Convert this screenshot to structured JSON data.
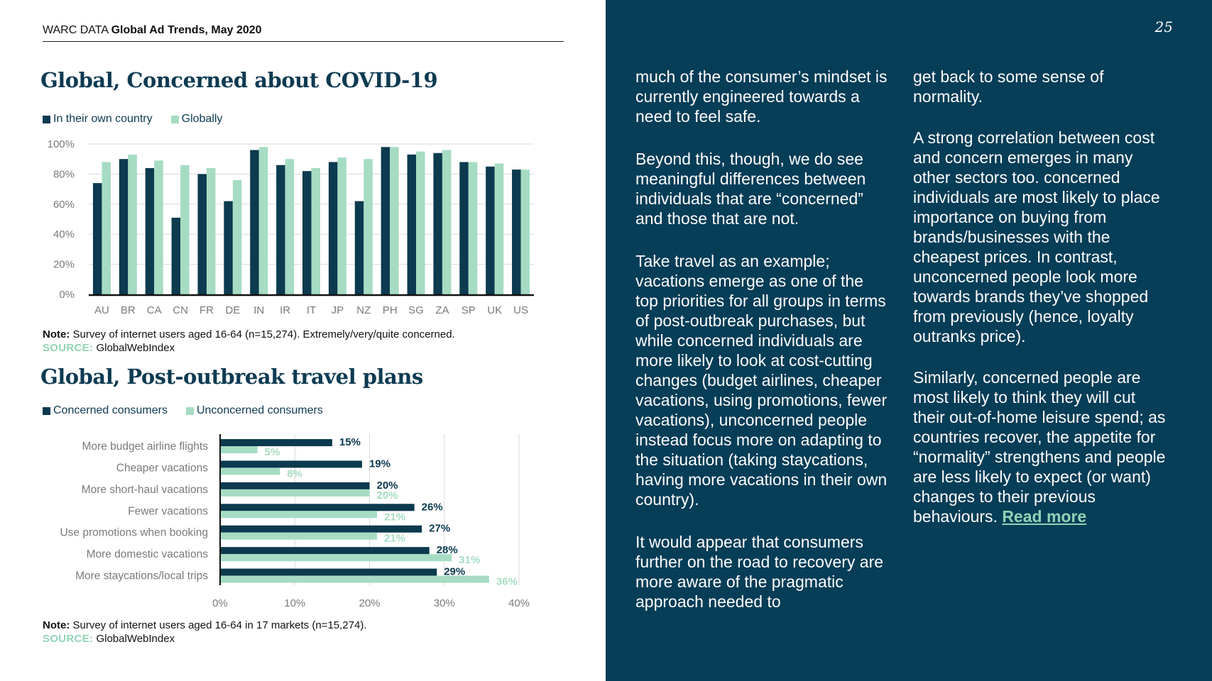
{
  "header": {
    "prefix": "WARC DATA",
    "title": "Global Ad Trends, May 2020"
  },
  "page_number": "25",
  "colors": {
    "dark": "#0c3a4f",
    "light": "#a6dcc3",
    "navy_bg": "#063d57",
    "accent": "#8fd4b6"
  },
  "chart1": {
    "title": "Global, Concerned about COVID-19",
    "legend": [
      "In their own country",
      "Globally"
    ],
    "note_label": "Note:",
    "note": "Survey of internet users aged 16-64 (n=15,274). Extremely/very/quite concerned.",
    "source_label": "SOURCE:",
    "source": "GlobalWebIndex"
  },
  "chart2": {
    "title": "Global, Post-outbreak travel plans",
    "legend": [
      "Concerned consumers",
      "Unconcerned consumers"
    ],
    "note_label": "Note:",
    "note": "Survey of internet users aged 16-64 in 17 markets (n=15,274).",
    "source_label": "SOURCE:",
    "source": "GlobalWebIndex"
  },
  "chart_data": [
    {
      "type": "bar",
      "title": "Global, Concerned about COVID-19",
      "categories": [
        "AU",
        "BR",
        "CA",
        "CN",
        "FR",
        "DE",
        "IN",
        "IR",
        "IT",
        "JP",
        "NZ",
        "PH",
        "SG",
        "ZA",
        "SP",
        "UK",
        "US"
      ],
      "series": [
        {
          "name": "In their own country",
          "values": [
            74,
            90,
            84,
            51,
            80,
            62,
            96,
            86,
            82,
            88,
            62,
            98,
            93,
            94,
            88,
            85,
            83
          ]
        },
        {
          "name": "Globally",
          "values": [
            88,
            93,
            89,
            86,
            84,
            76,
            98,
            90,
            84,
            91,
            90,
            98,
            95,
            96,
            88,
            87,
            83
          ]
        }
      ],
      "ylim": [
        0,
        100
      ],
      "yticks": [
        "0%",
        "20%",
        "40%",
        "60%",
        "80%",
        "100%"
      ],
      "xlabel": "",
      "ylabel": "",
      "grid": true,
      "legend_position": "top-left"
    },
    {
      "type": "bar",
      "orientation": "horizontal",
      "title": "Global, Post-outbreak travel plans",
      "categories": [
        "More budget airline flights",
        "Cheaper vacations",
        "More short-haul vacations",
        "Fewer vacations",
        "Use promotions when booking",
        "More domestic vacations",
        "More staycations/local trips"
      ],
      "series": [
        {
          "name": "Concerned consumers",
          "values": [
            15,
            19,
            20,
            26,
            27,
            28,
            29
          ],
          "labels": [
            "15%",
            "19%",
            "20%",
            "26%",
            "27%",
            "28%",
            "29%"
          ]
        },
        {
          "name": "Unconcerned consumers",
          "values": [
            5,
            8,
            20,
            21,
            21,
            31,
            36
          ],
          "labels": [
            "5%",
            "8%",
            "20%",
            "21%",
            "21%",
            "31%",
            "36%"
          ]
        }
      ],
      "xlim": [
        0,
        40
      ],
      "xticks": [
        "0%",
        "10%",
        "20%",
        "30%",
        "40%"
      ],
      "grid": true,
      "legend_position": "top-left"
    }
  ],
  "body": {
    "col1": [
      "much of the consumer’s mindset is currently engineered towards a need to feel safe.",
      "Beyond this, though, we do see meaningful differences between individuals that are “concerned” and those that are not.",
      "Take travel as an example; vacations emerge as one of the top priorities for all groups in terms of post-outbreak purchases, but while concerned individuals are more likely to look at cost-cutting changes (budget airlines, cheaper vacations, using promotions, fewer vacations), unconcerned people instead focus more on adapting to the situation (taking staycations, having more vacations in their own country).",
      "It would appear that consumers further on the road to recovery are more aware of the pragmatic approach needed to"
    ],
    "col2": [
      "get back to some sense of normality.",
      "A strong correlation between cost and concern emerges in many other sectors too. concerned individuals are most likely to place importance on buying from brands/businesses with the cheapest prices. In contrast, unconcerned people look more towards brands they’ve shopped from previously (hence, loyalty outranks price).",
      "Similarly, concerned people are most likely to think they will cut their out-of-home leisure spend; as countries recover, the appetite for “normality” strengthens and people are less likely to expect (or want) changes to their previous behaviours."
    ],
    "read_more": "Read more"
  }
}
